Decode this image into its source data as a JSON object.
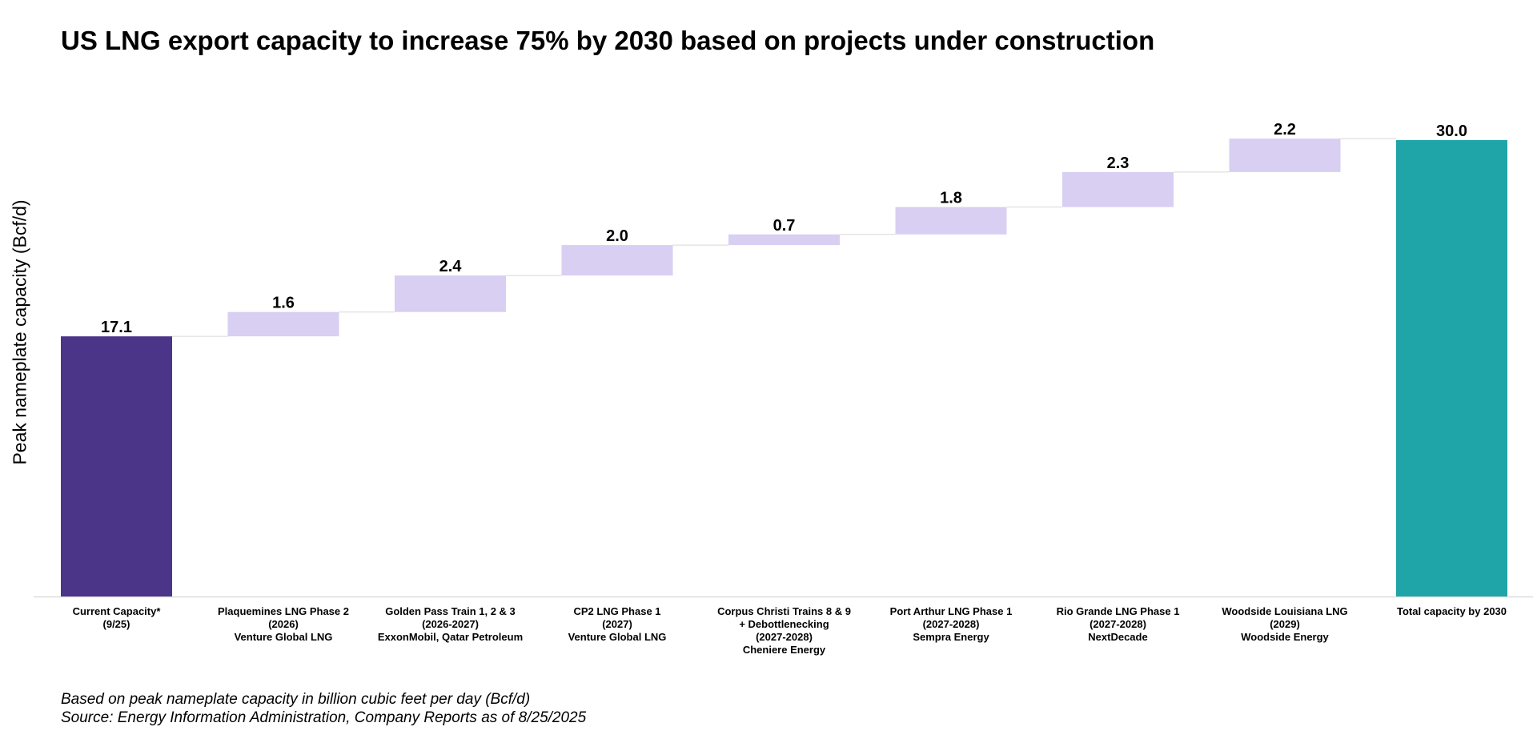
{
  "chart_data": {
    "type": "bar",
    "subtype": "waterfall",
    "title": "US LNG export capacity to increase 75% by 2030 based on projects under construction",
    "xlabel": "",
    "ylabel": "Peak nameplate capacity (Bcf/d)",
    "ylim": [
      0,
      30.0
    ],
    "grid": false,
    "legend": "none",
    "colors": {
      "start": "#4a3589",
      "increment": "#d8cff2",
      "total": "#1fa5a8",
      "connector": "#d8d8d8",
      "axis": "#dddddd"
    },
    "categories": [
      [
        "Current Capacity*",
        "(9/25)"
      ],
      [
        "Plaquemines LNG Phase 2",
        "(2026)",
        "Venture Global LNG"
      ],
      [
        "Golden Pass Train 1, 2 & 3",
        "(2026-2027)",
        "ExxonMobil, Qatar Petroleum"
      ],
      [
        "CP2 LNG Phase 1",
        "(2027)",
        "Venture Global LNG"
      ],
      [
        "Corpus Christi Trains 8 & 9",
        "+ Debottlenecking",
        "(2027-2028)",
        "Cheniere Energy"
      ],
      [
        "Port Arthur LNG Phase 1",
        "(2027-2028)",
        "Sempra Energy"
      ],
      [
        "Rio Grande LNG Phase 1",
        "(2027-2028)",
        "NextDecade"
      ],
      [
        "Woodside Louisiana LNG",
        "(2029)",
        "Woodside Energy"
      ],
      [
        "Total capacity by 2030"
      ]
    ],
    "kinds": [
      "start",
      "increment",
      "increment",
      "increment",
      "increment",
      "increment",
      "increment",
      "increment",
      "total"
    ],
    "values": [
      17.1,
      1.6,
      2.4,
      2.0,
      0.7,
      1.8,
      2.3,
      2.2,
      30.0
    ],
    "value_labels": [
      "17.1",
      "1.6",
      "2.4",
      "2.0",
      "0.7",
      "1.8",
      "2.3",
      "2.2",
      "30.0"
    ]
  },
  "footnotes": [
    "Based on peak nameplate capacity in billion cubic feet per day (Bcf/d)",
    "Source: Energy Information Administration, Company Reports as of 8/25/2025"
  ]
}
